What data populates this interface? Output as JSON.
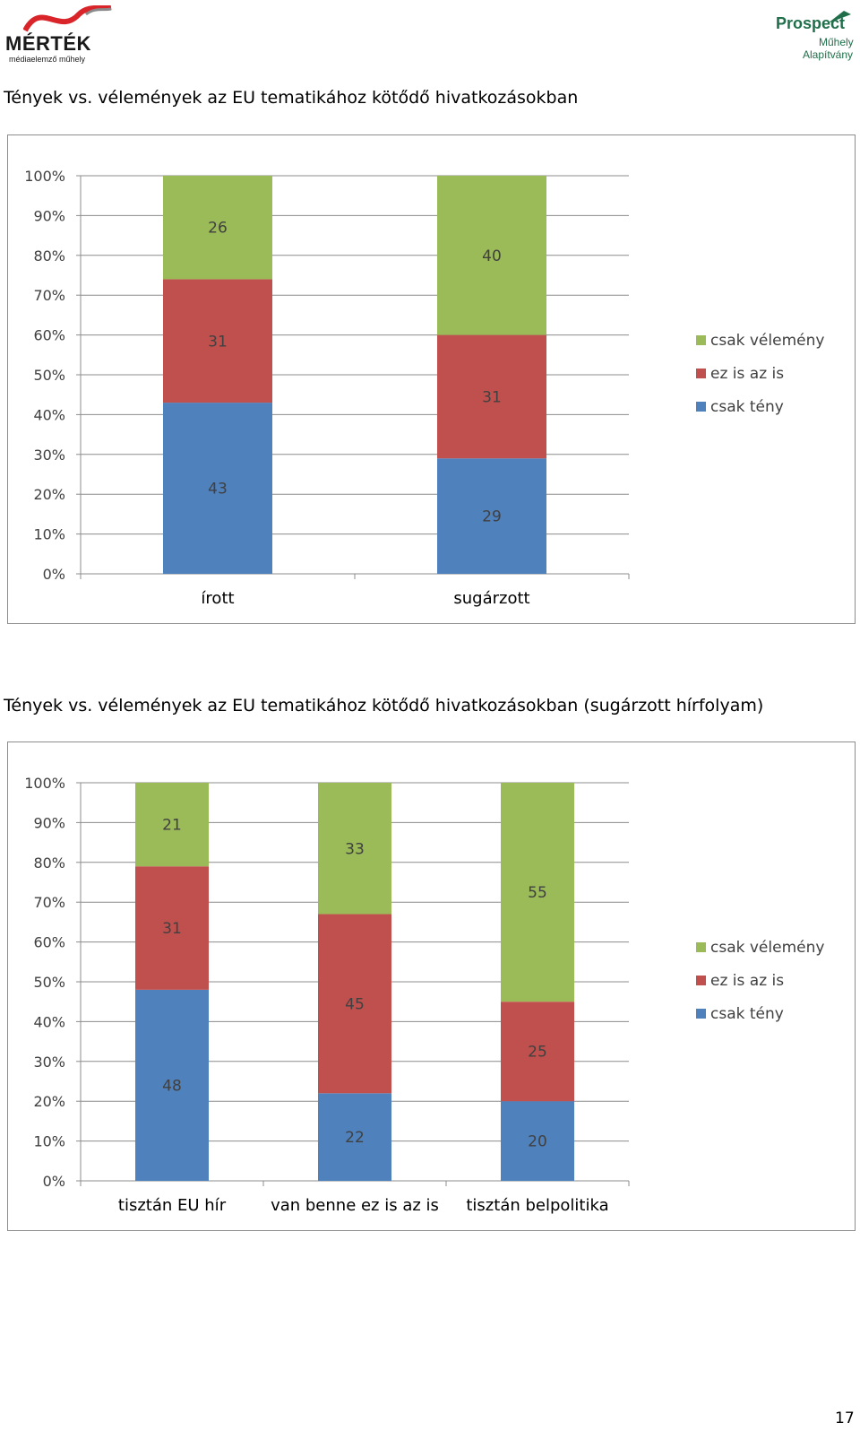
{
  "header": {
    "left_logo_name": "MÉRTÉK",
    "left_logo_tagline": "médiaelemző műhely",
    "right_logo_name": "Prospect",
    "right_logo_line2": "Műhely",
    "right_logo_line3": "Alapítvány"
  },
  "colors": {
    "csak_teny": "#4f81bd",
    "ez_is_az_is": "#c0504d",
    "csak_velemeny": "#9bbb59"
  },
  "page_number": "17",
  "chart_data": [
    {
      "type": "bar",
      "stacked": true,
      "title": "Tények vs. vélemények az EU tematikához kötődő hivatkozásokban",
      "categories": [
        "írott",
        "sugárzott"
      ],
      "series": [
        {
          "name": "csak tény",
          "values": [
            43,
            29
          ]
        },
        {
          "name": "ez is az is",
          "values": [
            31,
            31
          ]
        },
        {
          "name": "csak vélemény",
          "values": [
            26,
            40
          ]
        }
      ],
      "ylim": [
        0,
        100
      ],
      "yticks": [
        "0%",
        "10%",
        "20%",
        "30%",
        "40%",
        "50%",
        "60%",
        "70%",
        "80%",
        "90%",
        "100%"
      ],
      "legend": [
        "csak vélemény",
        "ez is az is",
        "csak tény"
      ],
      "legend_position": "right",
      "xlabel": "",
      "ylabel": ""
    },
    {
      "type": "bar",
      "stacked": true,
      "title": "Tények vs. vélemények az EU tematikához kötődő hivatkozásokban (sugárzott hírfolyam)",
      "categories": [
        "tisztán EU hír",
        "van benne ez is az is",
        "tisztán belpolitika"
      ],
      "series": [
        {
          "name": "csak tény",
          "values": [
            48,
            22,
            20
          ]
        },
        {
          "name": "ez is az is",
          "values": [
            31,
            45,
            25
          ]
        },
        {
          "name": "csak vélemény",
          "values": [
            21,
            33,
            55
          ]
        }
      ],
      "ylim": [
        0,
        100
      ],
      "yticks": [
        "0%",
        "10%",
        "20%",
        "30%",
        "40%",
        "50%",
        "60%",
        "70%",
        "80%",
        "90%",
        "100%"
      ],
      "legend": [
        "csak vélemény",
        "ez is az is",
        "csak tény"
      ],
      "legend_position": "right",
      "xlabel": "",
      "ylabel": ""
    }
  ]
}
